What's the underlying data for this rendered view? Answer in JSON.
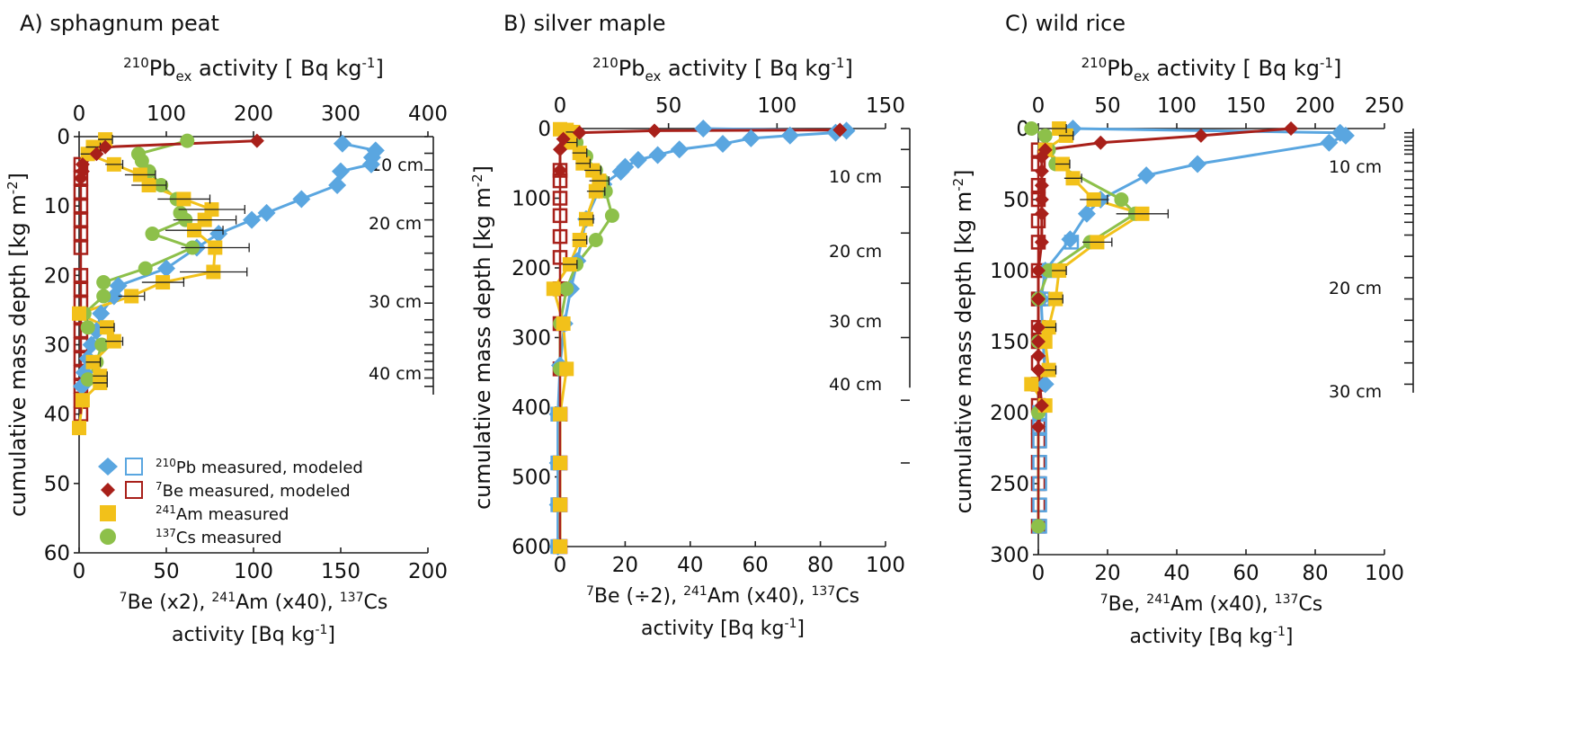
{
  "colors": {
    "pb": "#5aa6e0",
    "be": "#a8201a",
    "am": "#f2c11a",
    "cs": "#8dc04a"
  },
  "legend": [
    {
      "sup": "210",
      "text": "Pb measured, modeled"
    },
    {
      "sup": "7",
      "text": "Be measured, modeled"
    },
    {
      "sup": "241",
      "text": "Am measured"
    },
    {
      "sup": "137",
      "text": "Cs measured"
    }
  ],
  "top_axis_title": {
    "sup": "210",
    "main": "Pb",
    "sub": "ex",
    "rest": " activity [ Bq kg",
    "sup2": "-1",
    "end": "]"
  },
  "ylabel": {
    "main": "cumulative mass depth [kg m",
    "sup": "-2",
    "end": "]"
  },
  "xlabel_line2": {
    "main": "activity [Bq kg",
    "sup": "-1",
    "end": "]"
  },
  "chart_data": [
    {
      "type": "line",
      "title": "A) sphagnum peat",
      "xlabel_bottom": {
        "s1": "7",
        "t1": "Be (x2),  ",
        "s2": "241",
        "t2": "Am (x40), ",
        "s3": "137",
        "t3": "Cs"
      },
      "top_ticks": [
        "0",
        "100",
        "200",
        "300",
        "400"
      ],
      "top_range": [
        0,
        400
      ],
      "bottom_ticks": [
        "0",
        "50",
        "100",
        "150",
        "200"
      ],
      "bottom_range": [
        0,
        200
      ],
      "y_ticks": [
        "0",
        "10",
        "20",
        "30",
        "40",
        "50",
        "60"
      ],
      "y_range": [
        0,
        60
      ],
      "cm_labels": [
        "10 cm",
        "20 cm",
        "30 cm",
        "40 cm"
      ],
      "series": {
        "pb_measured": [
          [
            302,
            1
          ],
          [
            340,
            2
          ],
          [
            336,
            3
          ],
          [
            335,
            4
          ],
          [
            300,
            5
          ],
          [
            296,
            7
          ],
          [
            255,
            9
          ],
          [
            215,
            11
          ],
          [
            198,
            12
          ],
          [
            160,
            14
          ],
          [
            135,
            16
          ],
          [
            100,
            19
          ],
          [
            45,
            21.5
          ],
          [
            40,
            23
          ],
          [
            25,
            25.5
          ],
          [
            20,
            28
          ],
          [
            14,
            30
          ],
          [
            10,
            32
          ],
          [
            6,
            34
          ],
          [
            3,
            36
          ]
        ],
        "be_measured": [
          [
            102,
            0.6
          ],
          [
            15,
            1.5
          ],
          [
            10,
            2.5
          ],
          [
            2,
            4
          ],
          [
            2,
            5
          ],
          [
            1,
            6
          ]
        ],
        "be_modeled": [
          [
            1,
            4
          ],
          [
            1,
            6
          ],
          [
            1,
            8
          ],
          [
            1,
            10
          ],
          [
            1,
            12
          ],
          [
            1,
            14
          ],
          [
            1,
            16
          ],
          [
            1,
            20
          ],
          [
            1,
            22
          ],
          [
            1,
            24
          ],
          [
            1,
            26
          ],
          [
            1,
            28
          ],
          [
            1,
            30
          ],
          [
            1,
            32
          ],
          [
            1,
            34
          ],
          [
            1,
            36
          ],
          [
            1,
            38
          ],
          [
            1,
            40
          ]
        ],
        "am_measured": [
          [
            15,
            0.4
          ],
          [
            8,
            1.5
          ],
          [
            5,
            2.5
          ],
          [
            20,
            4
          ],
          [
            35,
            5.5
          ],
          [
            40,
            7
          ],
          [
            60,
            9
          ],
          [
            76,
            10.5
          ],
          [
            72,
            12
          ],
          [
            66,
            13.5
          ],
          [
            78,
            16
          ],
          [
            77,
            19.5
          ],
          [
            48,
            21
          ],
          [
            30,
            23
          ],
          [
            0,
            25.5
          ],
          [
            16,
            27.5
          ],
          [
            20,
            29.5
          ],
          [
            8,
            32.5
          ],
          [
            12,
            34.5
          ],
          [
            12,
            35.5
          ],
          [
            2,
            38
          ],
          [
            0,
            42
          ]
        ],
        "cs_measured": [
          [
            62,
            0.6
          ],
          [
            34,
            2.5
          ],
          [
            36,
            3.5
          ],
          [
            40,
            5
          ],
          [
            47,
            7
          ],
          [
            56,
            9
          ],
          [
            58,
            11
          ],
          [
            61,
            12
          ],
          [
            42,
            14
          ],
          [
            65,
            16
          ],
          [
            38,
            19
          ],
          [
            14,
            21
          ],
          [
            14,
            23
          ],
          [
            3,
            25.5
          ],
          [
            5,
            27.5
          ],
          [
            13,
            30
          ],
          [
            10,
            32.5
          ],
          [
            5,
            35
          ]
        ]
      }
    },
    {
      "type": "line",
      "title": "B) silver maple",
      "xlabel_bottom": {
        "s1": "7",
        "t1": "Be (÷2),  ",
        "s2": "241",
        "t2": "Am (x40), ",
        "s3": "137",
        "t3": "Cs"
      },
      "top_ticks": [
        "0",
        "50",
        "100",
        "150"
      ],
      "top_range": [
        0,
        150
      ],
      "bottom_ticks": [
        "0",
        "20",
        "40",
        "60",
        "80",
        "100"
      ],
      "bottom_range": [
        0,
        100
      ],
      "y_ticks": [
        "0",
        "100",
        "200",
        "300",
        "400",
        "500",
        "600"
      ],
      "y_range": [
        0,
        600
      ],
      "cm_labels": [
        "10 cm",
        "20 cm",
        "30 cm",
        "40 cm"
      ],
      "series": {
        "pb_measured": [
          [
            66,
            0
          ],
          [
            132,
            3
          ],
          [
            127,
            6
          ],
          [
            106,
            10
          ],
          [
            88,
            14
          ],
          [
            75,
            22
          ],
          [
            55,
            30
          ],
          [
            45,
            38
          ],
          [
            36,
            45
          ],
          [
            30,
            55
          ],
          [
            28,
            62
          ],
          [
            20,
            80
          ],
          [
            18,
            88
          ],
          [
            12,
            130
          ],
          [
            8,
            190
          ],
          [
            5,
            230
          ],
          [
            2,
            280
          ],
          [
            0,
            340
          ],
          [
            -1,
            410
          ],
          [
            -1,
            480
          ],
          [
            -1,
            540
          ],
          [
            -1,
            600
          ]
        ],
        "pb_modeled": [
          [
            -1,
            410
          ],
          [
            -1,
            480
          ],
          [
            -1,
            540
          ],
          [
            -1,
            600
          ]
        ],
        "be_measured": [
          [
            86,
            2
          ],
          [
            29,
            3
          ],
          [
            6,
            6
          ],
          [
            1,
            15
          ],
          [
            0,
            30
          ],
          [
            0,
            60
          ]
        ],
        "be_modeled": [
          [
            0,
            60
          ],
          [
            0,
            75
          ],
          [
            0,
            100
          ],
          [
            0,
            125
          ],
          [
            0,
            155
          ],
          [
            0,
            185
          ],
          [
            0,
            230
          ],
          [
            0,
            280
          ],
          [
            0,
            345
          ],
          [
            0,
            410
          ],
          [
            0,
            480
          ],
          [
            0,
            540
          ],
          [
            0,
            600
          ]
        ],
        "am_measured": [
          [
            0,
            1
          ],
          [
            2,
            2
          ],
          [
            4,
            5
          ],
          [
            3,
            20
          ],
          [
            6,
            35
          ],
          [
            7,
            50
          ],
          [
            10,
            60
          ],
          [
            12,
            75
          ],
          [
            11,
            90
          ],
          [
            8,
            130
          ],
          [
            6,
            160
          ],
          [
            3,
            195
          ],
          [
            -2,
            230
          ],
          [
            1,
            280
          ],
          [
            2,
            345
          ],
          [
            0,
            410
          ],
          [
            0,
            480
          ],
          [
            0,
            540
          ],
          [
            0,
            600
          ]
        ],
        "cs_measured": [
          [
            5,
            20
          ],
          [
            8,
            40
          ],
          [
            11,
            60
          ],
          [
            13,
            75
          ],
          [
            14,
            90
          ],
          [
            16,
            125
          ],
          [
            11,
            160
          ],
          [
            5,
            195
          ],
          [
            2,
            230
          ],
          [
            0,
            280
          ],
          [
            0,
            345
          ]
        ]
      }
    },
    {
      "type": "line",
      "title": "C) wild rice",
      "xlabel_bottom": {
        "s1": "7",
        "t1": "Be,  ",
        "s2": "241",
        "t2": "Am (x40), ",
        "s3": "137",
        "t3": "Cs"
      },
      "top_ticks": [
        "0",
        "50",
        "100",
        "150",
        "200",
        "250"
      ],
      "top_range": [
        0,
        250
      ],
      "bottom_ticks": [
        "0",
        "20",
        "40",
        "60",
        "80",
        "100"
      ],
      "bottom_range": [
        0,
        100
      ],
      "y_ticks": [
        "0",
        "50",
        "100",
        "150",
        "200",
        "250",
        "300"
      ],
      "y_range": [
        0,
        300
      ],
      "cm_labels": [
        "10 cm",
        "20 cm",
        "30 cm"
      ],
      "series": {
        "pb_measured": [
          [
            25,
            0
          ],
          [
            218,
            3
          ],
          [
            222,
            5
          ],
          [
            210,
            10
          ],
          [
            115,
            25
          ],
          [
            78,
            33
          ],
          [
            45,
            50
          ],
          [
            35,
            60
          ],
          [
            23,
            78
          ],
          [
            5,
            100
          ],
          [
            2,
            120
          ],
          [
            5,
            180
          ]
        ],
        "pb_modeled": [
          [
            24,
            80
          ],
          [
            8,
            100
          ],
          [
            3,
            120
          ],
          [
            1,
            200
          ],
          [
            1,
            210
          ],
          [
            1,
            220
          ],
          [
            1,
            235
          ],
          [
            1,
            250
          ],
          [
            1,
            265
          ],
          [
            1,
            280
          ]
        ],
        "be_measured": [
          [
            73,
            0
          ],
          [
            47,
            5
          ],
          [
            18,
            10
          ],
          [
            2,
            15
          ],
          [
            1,
            20
          ],
          [
            1,
            30
          ],
          [
            1,
            40
          ],
          [
            1,
            50
          ],
          [
            1,
            60
          ],
          [
            1,
            80
          ],
          [
            0,
            100
          ],
          [
            0,
            120
          ],
          [
            0,
            140
          ],
          [
            0,
            150
          ],
          [
            0,
            160
          ],
          [
            0,
            170
          ],
          [
            1,
            195
          ],
          [
            0,
            210
          ]
        ],
        "be_modeled": [
          [
            0,
            15
          ],
          [
            0,
            25
          ],
          [
            0,
            40
          ],
          [
            0,
            50
          ],
          [
            0,
            65
          ],
          [
            0,
            80
          ],
          [
            0,
            100
          ],
          [
            0,
            120
          ],
          [
            0,
            140
          ],
          [
            0,
            150
          ],
          [
            0,
            165
          ],
          [
            0,
            180
          ],
          [
            0,
            195
          ],
          [
            0,
            210
          ],
          [
            0,
            220
          ],
          [
            0,
            235
          ],
          [
            0,
            250
          ],
          [
            0,
            265
          ],
          [
            0,
            280
          ]
        ],
        "am_measured": [
          [
            6,
            0
          ],
          [
            8,
            5
          ],
          [
            2,
            15
          ],
          [
            7,
            25
          ],
          [
            10,
            35
          ],
          [
            16,
            50
          ],
          [
            30,
            60
          ],
          [
            17,
            80
          ],
          [
            6,
            100
          ],
          [
            5,
            120
          ],
          [
            3,
            140
          ],
          [
            2,
            150
          ],
          [
            3,
            170
          ],
          [
            -2,
            180
          ],
          [
            2,
            195
          ]
        ],
        "cs_measured": [
          [
            -2,
            0
          ],
          [
            2,
            5
          ],
          [
            3,
            15
          ],
          [
            5,
            25
          ],
          [
            24,
            50
          ],
          [
            28,
            60
          ],
          [
            15,
            80
          ],
          [
            3,
            100
          ],
          [
            0,
            120
          ],
          [
            0,
            150
          ],
          [
            0,
            200
          ],
          [
            0,
            280
          ]
        ]
      }
    }
  ]
}
